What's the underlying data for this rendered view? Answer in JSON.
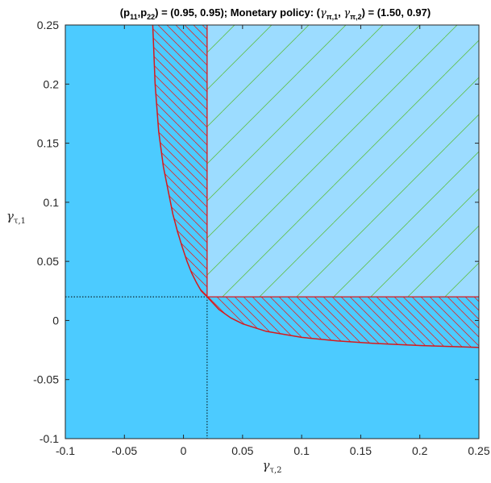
{
  "chart_data": {
    "type": "area",
    "title": {
      "prefix": "(p",
      "sub_a": "11",
      "mid1": ",p",
      "sub_b": "22",
      "mid2": ") = (0.95, 0.95); Monetary policy: (",
      "sym1": "γ",
      "sub_c": "π,1",
      "mid3": ", ",
      "sym2": "γ",
      "sub_d": "π,2",
      "suffix": ") = (1.50, 0.97)"
    },
    "xlabel": {
      "symbol": "γ",
      "subscript": "τ,2"
    },
    "ylabel": {
      "symbol": "γ",
      "subscript": "τ,1"
    },
    "xlim": [
      -0.1,
      0.25
    ],
    "ylim": [
      -0.1,
      0.25
    ],
    "xticks": [
      -0.1,
      -0.05,
      0,
      0.05,
      0.1,
      0.15,
      0.2,
      0.25
    ],
    "xtick_labels": [
      "-0.1",
      "-0.05",
      "0",
      "0.05",
      "0.1",
      "0.15",
      "0.2",
      "0.25"
    ],
    "yticks": [
      -0.1,
      -0.05,
      0,
      0.05,
      0.1,
      0.15,
      0.2,
      0.25
    ],
    "ytick_labels": [
      "-0.1",
      "-0.05",
      "0",
      "0.05",
      "0.1",
      "0.15",
      "0.2",
      "0.25"
    ],
    "threshold": {
      "x": 0.02,
      "y": 0.02
    },
    "boundary_curve": {
      "x": [
        -0.026,
        -0.024,
        -0.021,
        -0.017,
        -0.013,
        -0.009,
        -0.005,
        -0.001,
        0.003,
        0.007,
        0.011,
        0.015,
        0.02,
        0.03,
        0.04,
        0.05,
        0.07,
        0.1,
        0.13,
        0.16,
        0.2,
        0.25
      ],
      "y": [
        0.25,
        0.2,
        0.16,
        0.13,
        0.11,
        0.09,
        0.075,
        0.062,
        0.05,
        0.04,
        0.032,
        0.025,
        0.02,
        0.0093,
        0.0022,
        -0.0028,
        -0.0092,
        -0.0143,
        -0.0173,
        -0.0193,
        -0.0212,
        -0.0228
      ]
    },
    "regions": [
      {
        "name": "background",
        "color": "#4ccbff"
      },
      {
        "name": "upper-right",
        "color": "#9cdcff",
        "hatch_color": "#5fbf4a"
      },
      {
        "name": "between-curve-and-threshold",
        "hatch_color": "#d83030"
      }
    ],
    "colors": {
      "boundary": "#d7191c",
      "dotted": "#000000"
    },
    "grid": false
  }
}
